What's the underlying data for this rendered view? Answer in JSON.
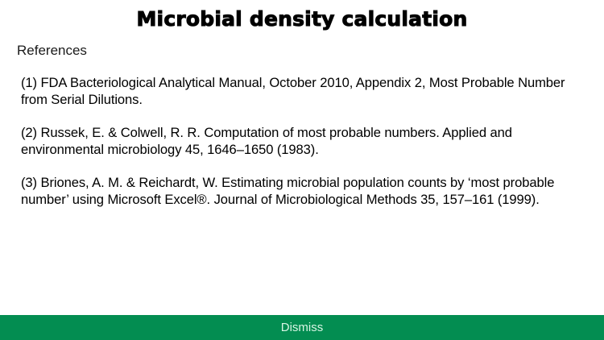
{
  "header": {
    "title": "Microbial density calculation"
  },
  "section": {
    "label": "References"
  },
  "references": [
    {
      "text": "(1) FDA Bacteriological Analytical Manual, October 2010, Appendix 2, Most Probable Number from Serial Dilutions."
    },
    {
      "text": "(2) Russek, E. & Colwell, R. R. Computation of most probable numbers. Applied and environmental microbiology 45, 1646–1650 (1983)."
    },
    {
      "text": "(3) Briones, A. M. & Reichardt, W. Estimating microbial population counts by ‘most probable number’ using Microsoft Excel®. Journal of Microbiological Methods 35, 157–161 (1999)."
    }
  ],
  "footer": {
    "dismiss_label": "Dismiss",
    "bar_color": "#038d51"
  }
}
